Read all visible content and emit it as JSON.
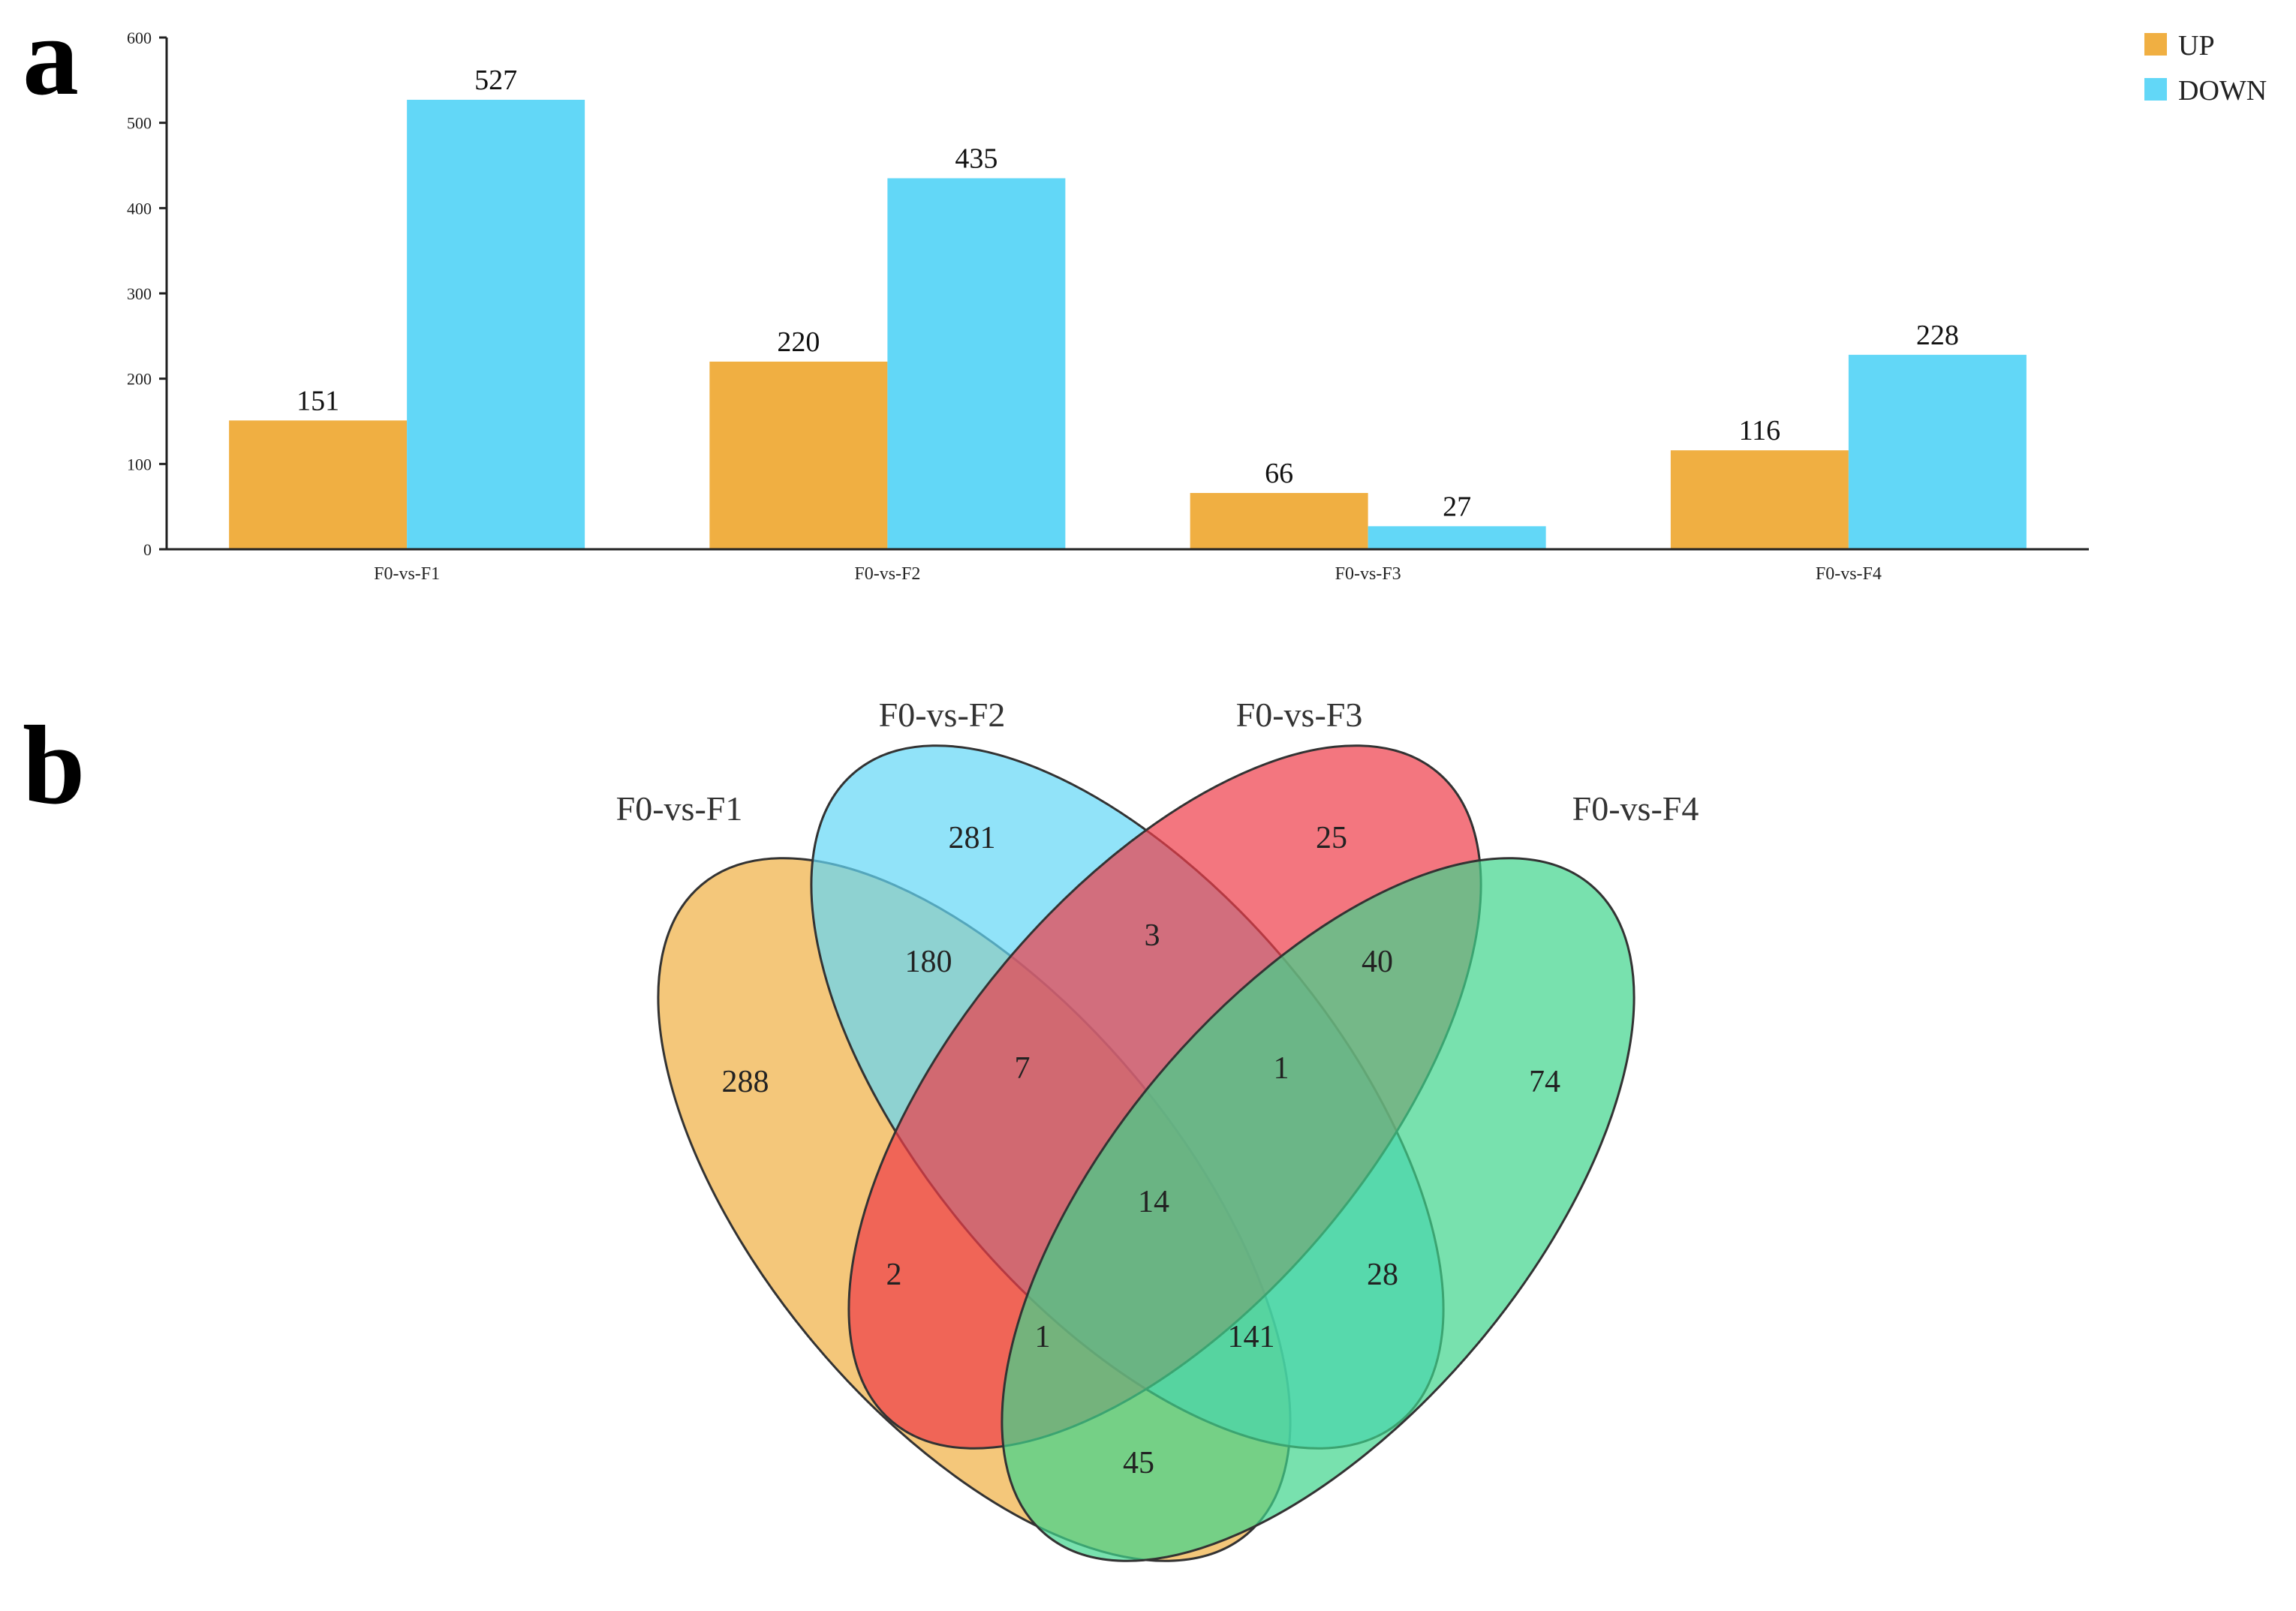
{
  "panels": {
    "a": "a",
    "b": "b"
  },
  "chart_data": [
    {
      "type": "bar",
      "title": "",
      "xlabel": "",
      "ylabel": "",
      "categories": [
        "F0-vs-F1",
        "F0-vs-F2",
        "F0-vs-F3",
        "F0-vs-F4"
      ],
      "series": [
        {
          "name": "UP",
          "color": "#F0AF42",
          "values": [
            151,
            220,
            66,
            116
          ]
        },
        {
          "name": "DOWN",
          "color": "#62D7F7",
          "values": [
            527,
            435,
            27,
            228
          ]
        }
      ],
      "ylim": [
        0,
        600
      ],
      "yticks": [
        0,
        100,
        200,
        300,
        400,
        500,
        600
      ],
      "legend": "top-right",
      "grid": false
    },
    {
      "type": "venn",
      "sets": [
        {
          "name": "F0-vs-F1",
          "color": "#F0AF42"
        },
        {
          "name": "F0-vs-F2",
          "color": "#62D7F7"
        },
        {
          "name": "F0-vs-F3",
          "color": "#EE3C49"
        },
        {
          "name": "F0-vs-F4",
          "color": "#3ED48C"
        }
      ],
      "regions": [
        {
          "id": "F1",
          "value": "288"
        },
        {
          "id": "F2",
          "value": "281"
        },
        {
          "id": "F3",
          "value": "25"
        },
        {
          "id": "F4",
          "value": "74"
        },
        {
          "id": "F1-F2",
          "value": "180"
        },
        {
          "id": "F2-F3",
          "value": "3"
        },
        {
          "id": "F3-F4",
          "value": "40"
        },
        {
          "id": "F1-F2-F3",
          "value": "7"
        },
        {
          "id": "F2-F3-F4",
          "value": "1"
        },
        {
          "id": "F1-F2-F3-F4",
          "value": "14"
        },
        {
          "id": "F1-F3",
          "value": "2"
        },
        {
          "id": "F2-F4",
          "value": "28"
        },
        {
          "id": "F1-F3-F4",
          "value": "1"
        },
        {
          "id": "F1-F2-F4",
          "value": "141"
        },
        {
          "id": "F1-F4",
          "value": "45"
        }
      ]
    }
  ]
}
